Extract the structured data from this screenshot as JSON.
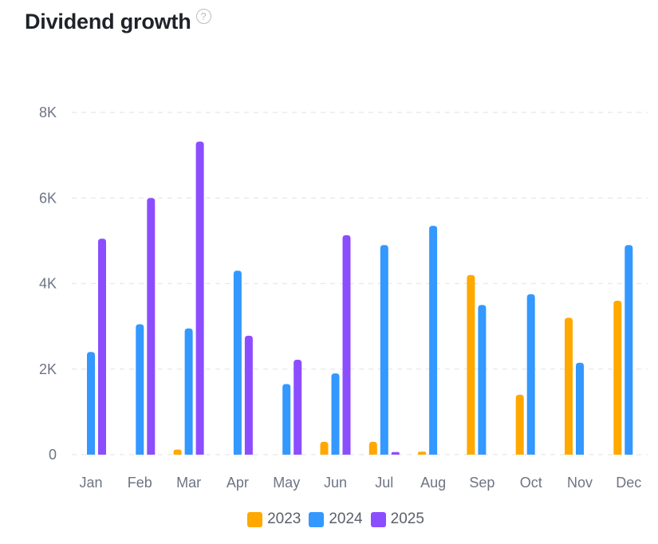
{
  "header": {
    "title": "Dividend growth",
    "help_icon": "question-circle-icon"
  },
  "colors": {
    "2023": "#ffa800",
    "2024": "#3398ff",
    "2025": "#8c4dff",
    "grid": "#e6e8ec",
    "ticks": "#6e7485"
  },
  "chart_data": {
    "type": "bar",
    "title": "Dividend growth",
    "xlabel": "",
    "ylabel": "",
    "categories": [
      "Jan",
      "Feb",
      "Mar",
      "Apr",
      "May",
      "Jun",
      "Jul",
      "Aug",
      "Sep",
      "Oct",
      "Nov",
      "Dec"
    ],
    "series": [
      {
        "name": "2023",
        "color": "#ffa800",
        "values": [
          0,
          0,
          120,
          0,
          0,
          300,
          300,
          70,
          4200,
          1400,
          3200,
          3600
        ]
      },
      {
        "name": "2024",
        "color": "#3398ff",
        "values": [
          2400,
          3050,
          2950,
          4300,
          1650,
          1900,
          4900,
          5350,
          3500,
          3750,
          2150,
          4900
        ]
      },
      {
        "name": "2025",
        "color": "#8c4dff",
        "values": [
          5050,
          6000,
          7320,
          2780,
          2220,
          5130,
          60,
          0,
          0,
          0,
          0,
          0
        ]
      }
    ],
    "yticks": [
      "0",
      "2K",
      "4K",
      "6K",
      "8K"
    ],
    "ytick_values": [
      0,
      2000,
      4000,
      6000,
      8000
    ],
    "ylim": [
      0,
      8000
    ],
    "grid": true,
    "legend": "bottom-center"
  }
}
